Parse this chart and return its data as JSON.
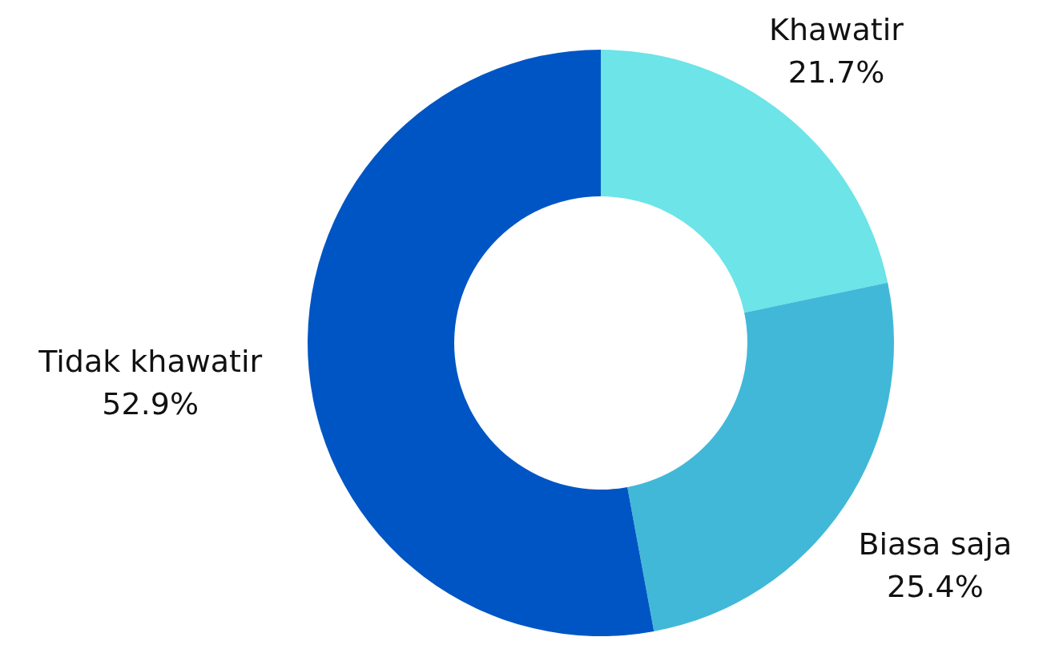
{
  "chart_data": {
    "type": "donut",
    "categories": [
      "Khawatir",
      "Biasa saja",
      "Tidak khawatir"
    ],
    "values": [
      21.7,
      25.4,
      52.9
    ],
    "colors": [
      "#6ce4e8",
      "#42b8d8",
      "#0055c4"
    ],
    "value_labels": [
      "21.7%",
      "25.4%",
      "52.9%"
    ]
  }
}
